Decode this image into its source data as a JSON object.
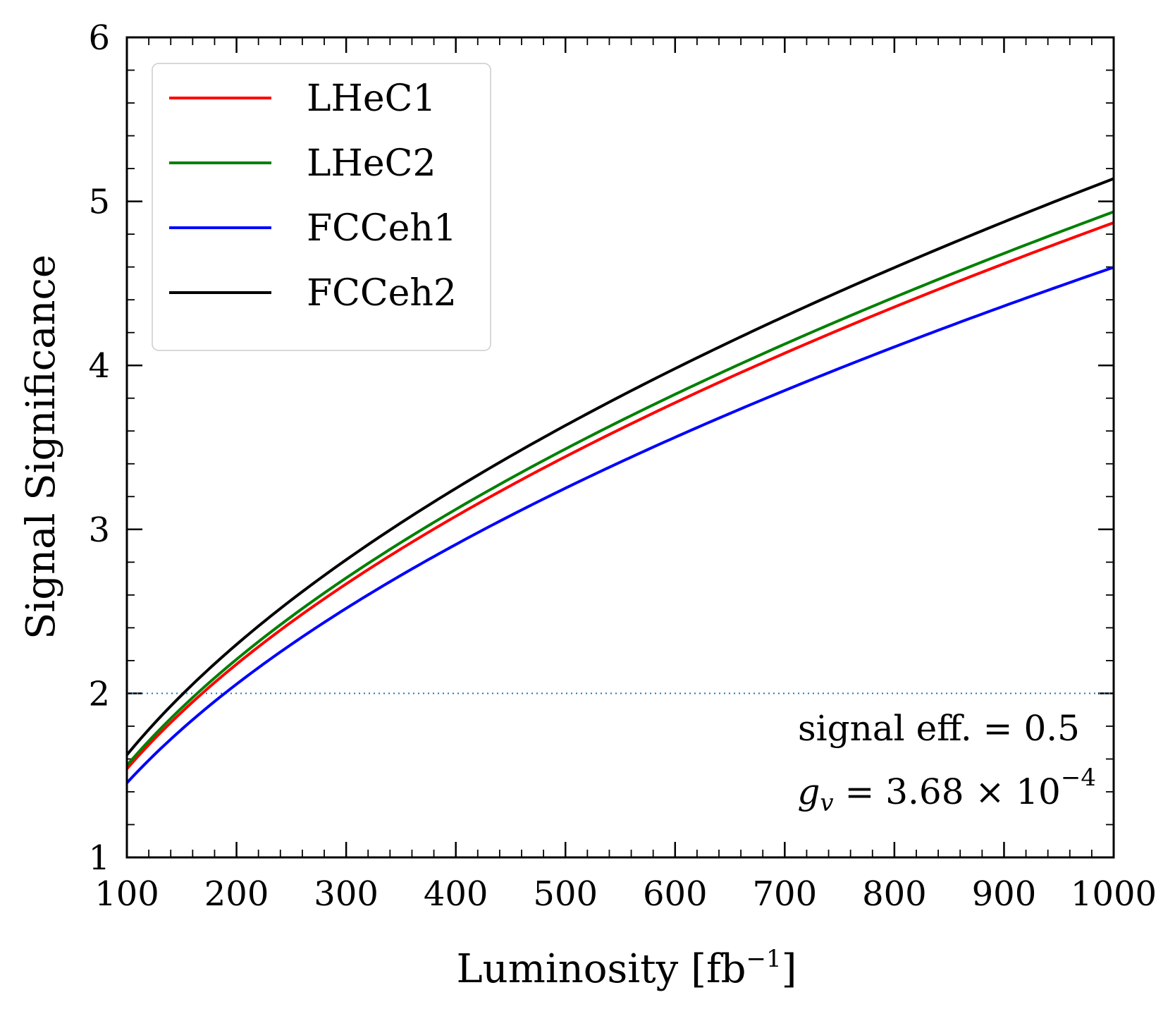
{
  "chart_data": {
    "type": "line",
    "title": "",
    "xlabel": "Luminosity [fb",
    "xlabel_sup": "−1",
    "xlabel_close": "]",
    "ylabel": "Signal Significance",
    "xlim": [
      100,
      1000
    ],
    "ylim": [
      1,
      6
    ],
    "xticks": [
      100,
      200,
      300,
      400,
      500,
      600,
      700,
      800,
      900,
      1000
    ],
    "yticks": [
      1,
      2,
      3,
      4,
      5,
      6
    ],
    "legend_position": "upper-left",
    "reference_line": {
      "y": 2,
      "style": "dotted",
      "color": "#1f77b4"
    },
    "annotations": {
      "line1": "signal eff. = 0.5",
      "line2_prefix": "g",
      "line2_sub": "v",
      "line2_body": " = 3.68 × 10",
      "line2_sup": "−4"
    },
    "series": [
      {
        "name": "LHeC1",
        "color": "#ff0000",
        "coef": 0.154
      },
      {
        "name": "LHeC2",
        "color": "#008000",
        "coef": 0.1561
      },
      {
        "name": "FCCeh1",
        "color": "#0000ff",
        "coef": 0.1454
      },
      {
        "name": "FCCeh2",
        "color": "#000000",
        "coef": 0.1625
      }
    ],
    "x": [
      100,
      150,
      200,
      250,
      300,
      350,
      400,
      450,
      500,
      550,
      600,
      650,
      700,
      750,
      800,
      850,
      900,
      950,
      1000
    ],
    "model": "y = coef * sqrt(x)"
  }
}
